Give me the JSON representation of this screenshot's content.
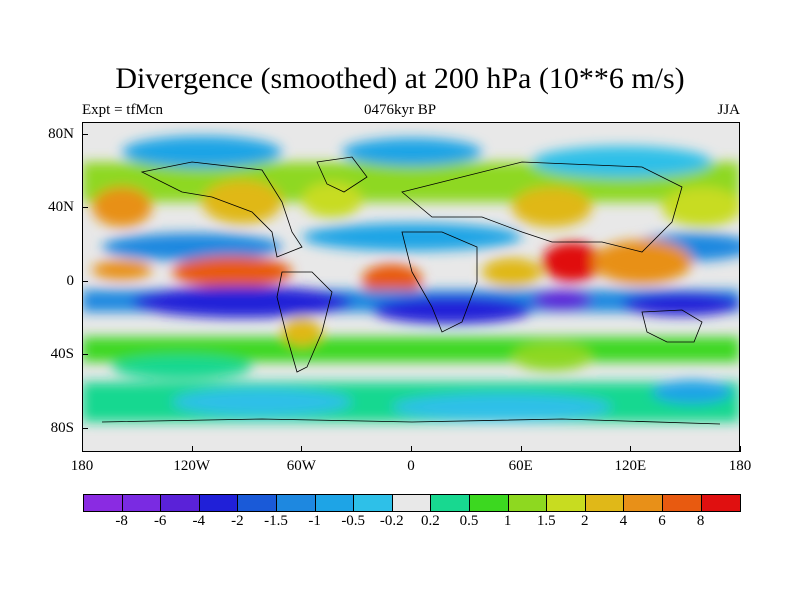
{
  "title": "Divergence (smoothed) at 200 hPa (10**6 m/s)",
  "subtitle_left": "Expt = tfMcn",
  "subtitle_center": "0476kyr BP",
  "subtitle_right": "JJA",
  "lat_labels": [
    "80N",
    "40N",
    "0",
    "40S",
    "80S"
  ],
  "lon_labels": [
    "180",
    "120W",
    "60W",
    "0",
    "60E",
    "120E",
    "180"
  ],
  "colorbar": {
    "labels": [
      "-8",
      "-6",
      "-4",
      "-2",
      "-1.5",
      "-1",
      "-0.5",
      "-0.2",
      "0.2",
      "0.5",
      "1",
      "1.5",
      "2",
      "4",
      "6",
      "8"
    ],
    "colors": [
      "#8a2be2",
      "#7a2be2",
      "#5a22d8",
      "#2020d8",
      "#1a5ad8",
      "#1e88e0",
      "#1ea4e6",
      "#2ec0e8",
      "#e8e8e8",
      "#18d890",
      "#3cd820",
      "#8ed820",
      "#c8dc20",
      "#e0b818",
      "#e89018",
      "#e85a10",
      "#e01010"
    ]
  }
}
